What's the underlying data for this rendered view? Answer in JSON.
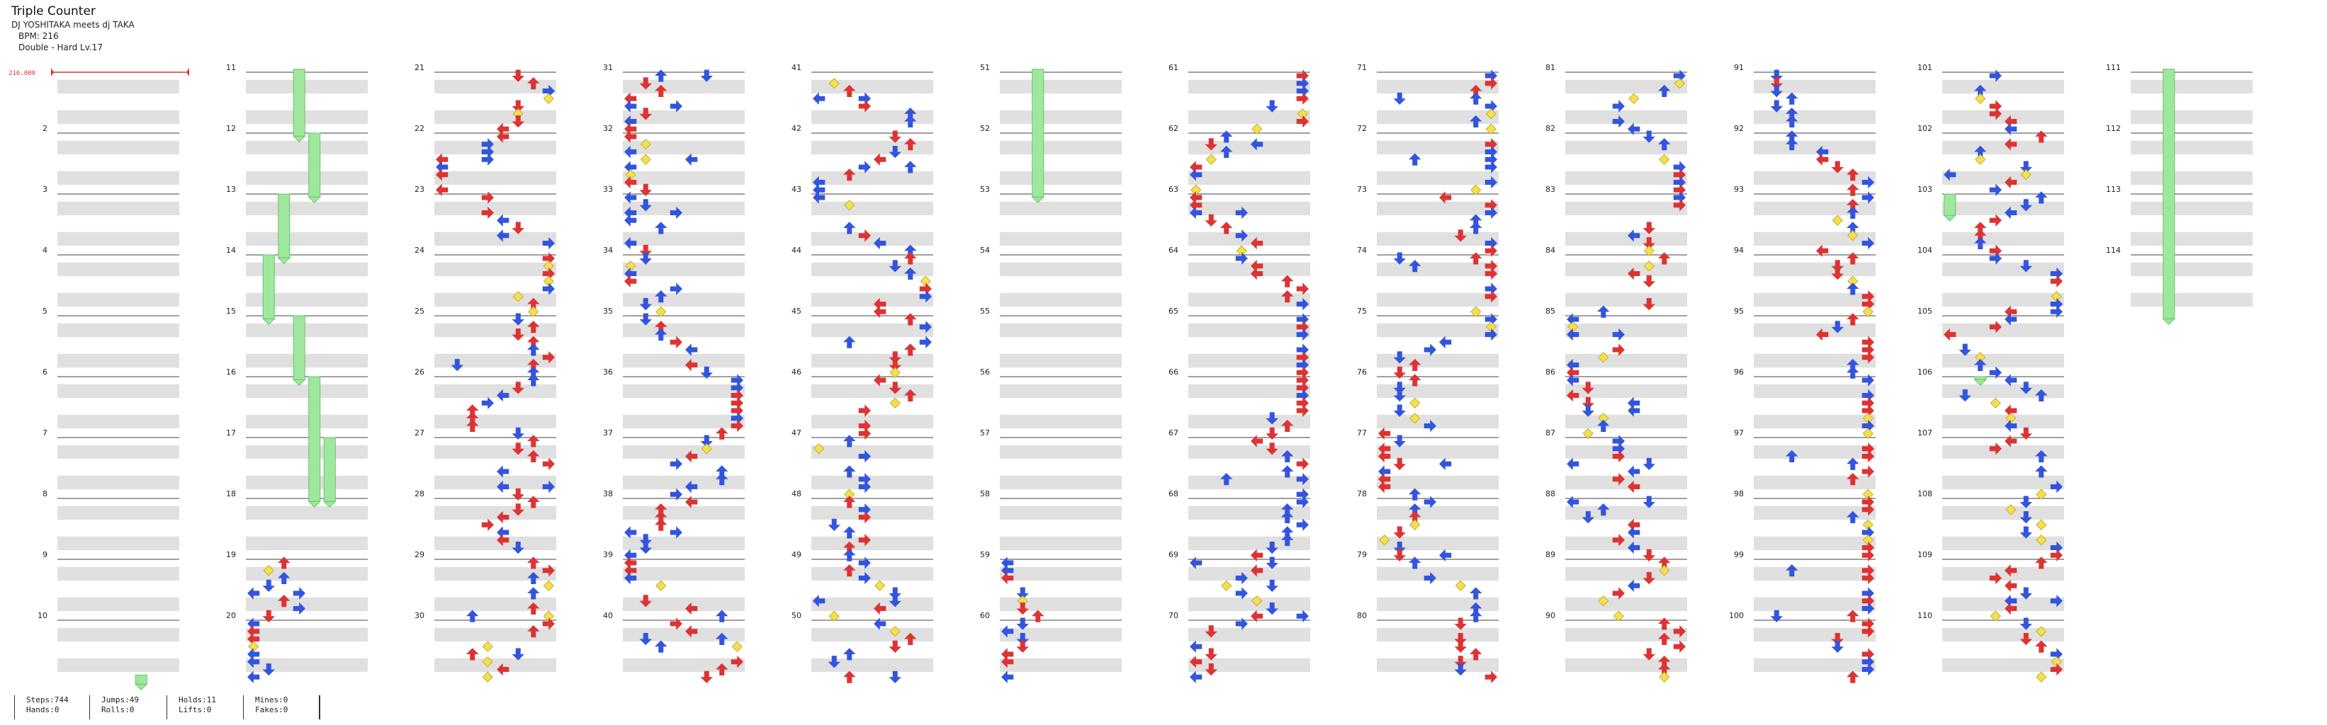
{
  "song": {
    "title": "Triple Counter",
    "artist": "DJ YOSHITAKA meets dj TAKA",
    "bpm_label": "BPM: 216",
    "difficulty_label": "Double - Hard  Lv.17"
  },
  "chart": {
    "total_measures": 114,
    "bpm_marker_value": "216.000",
    "colors": {
      "stripe": "#e0e0e0",
      "measure_line": "#404040",
      "left_arrow": "#3355dd",
      "right_arrow": "#dd3333",
      "yellow_arrow": "#f2e050",
      "hold": "#9ee89e",
      "bpm_marker": "#dd3333"
    }
  },
  "stats": [
    {
      "label": "Steps:744",
      "label2": "Hands:0"
    },
    {
      "label": "Jumps:49",
      "label2": "Rolls:0"
    },
    {
      "label": "Holds:11",
      "label2": "Lifts:0"
    },
    {
      "label": "Mines:0",
      "label2": "Fakes:0"
    }
  ]
}
